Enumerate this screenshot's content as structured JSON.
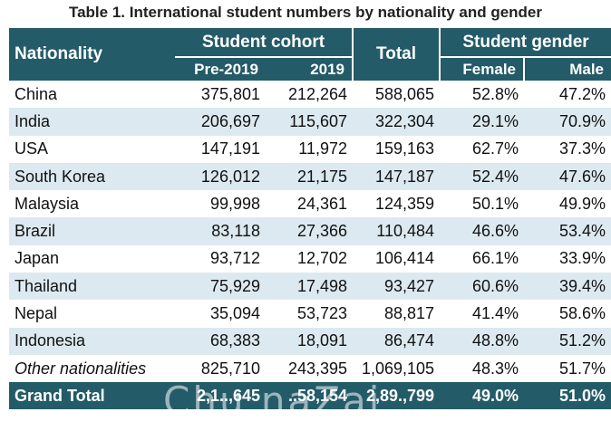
{
  "title": "Table 1. International student numbers by nationality and gender",
  "headers": {
    "nationality": "Nationality",
    "student_cohort": "Student cohort",
    "total": "Total",
    "student_gender": "Student gender",
    "pre2019": "Pre-2019",
    "y2019": "2019",
    "female": "Female",
    "male": "Male"
  },
  "rows": [
    {
      "nationality": "China",
      "pre2019": "375,801",
      "y2019": "212,264",
      "total": "588,065",
      "female": "52.8%",
      "male": "47.2%"
    },
    {
      "nationality": "India",
      "pre2019": "206,697",
      "y2019": "115,607",
      "total": "322,304",
      "female": "29.1%",
      "male": "70.9%"
    },
    {
      "nationality": "USA",
      "pre2019": "147,191",
      "y2019": "11,972",
      "total": "159,163",
      "female": "62.7%",
      "male": "37.3%"
    },
    {
      "nationality": "South Korea",
      "pre2019": "126,012",
      "y2019": "21,175",
      "total": "147,187",
      "female": "52.4%",
      "male": "47.6%"
    },
    {
      "nationality": "Malaysia",
      "pre2019": "99,998",
      "y2019": "24,361",
      "total": "124,359",
      "female": "50.1%",
      "male": "49.9%"
    },
    {
      "nationality": "Brazil",
      "pre2019": "83,118",
      "y2019": "27,366",
      "total": "110,484",
      "female": "46.6%",
      "male": "53.4%"
    },
    {
      "nationality": "Japan",
      "pre2019": "93,712",
      "y2019": "12,702",
      "total": "106,414",
      "female": "66.1%",
      "male": "33.9%"
    },
    {
      "nationality": "Thailand",
      "pre2019": "75,929",
      "y2019": "17,498",
      "total": "93,427",
      "female": "60.6%",
      "male": "39.4%"
    },
    {
      "nationality": "Nepal",
      "pre2019": "35,094",
      "y2019": "53,723",
      "total": "88,817",
      "female": "41.4%",
      "male": "58.6%"
    },
    {
      "nationality": "Indonesia",
      "pre2019": "68,383",
      "y2019": "18,091",
      "total": "86,474",
      "female": "48.8%",
      "male": "51.2%"
    },
    {
      "nationality": "Other nationalities",
      "pre2019": "825,710",
      "y2019": "243,395",
      "total": "1,069,105",
      "female": "48.3%",
      "male": "51.7%"
    }
  ],
  "grand_total": {
    "label": "Grand Total",
    "pre2019": "2,1..,645",
    "y2019": "..58,154",
    "total": "2,89.,799",
    "female": "49.0%",
    "male": "51.0%"
  },
  "watermark": "Chu naZai"
}
